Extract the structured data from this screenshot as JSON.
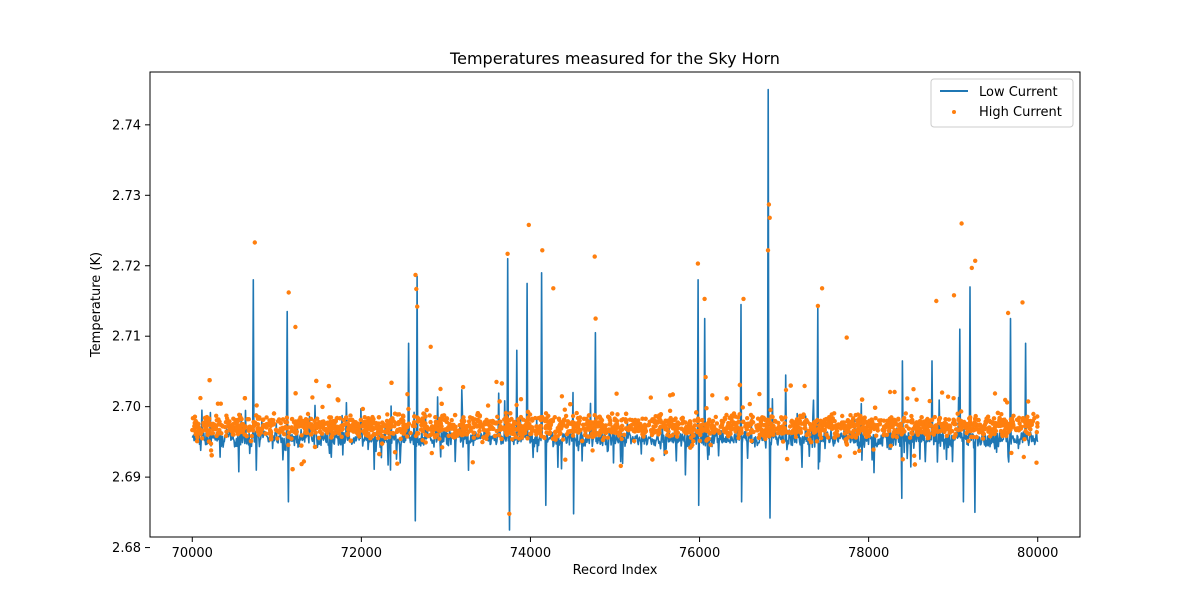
{
  "chart_data": {
    "type": "line",
    "title": "Temperatures measured for the Sky Horn",
    "xlabel": "Record Index",
    "ylabel": "Temperature (K)",
    "xlim": [
      69500,
      80500
    ],
    "ylim": [
      2.6815,
      2.7475
    ],
    "x_ticks": [
      70000,
      72000,
      74000,
      76000,
      78000,
      80000
    ],
    "y_ticks": [
      2.68,
      2.69,
      2.7,
      2.71,
      2.72,
      2.73,
      2.74
    ],
    "legend_position": "top-right",
    "series": [
      {
        "name": "Low Current",
        "kind": "line",
        "color": "#1f77b4",
        "x_range": [
          70000,
          80000
        ],
        "baseline": 2.6955,
        "noise_amplitude": 0.0018,
        "spikes": [
          {
            "x": 70720,
            "y": 2.718
          },
          {
            "x": 70760,
            "y": 2.691
          },
          {
            "x": 71120,
            "y": 2.7135
          },
          {
            "x": 71140,
            "y": 2.6865
          },
          {
            "x": 72560,
            "y": 2.709
          },
          {
            "x": 72640,
            "y": 2.6838
          },
          {
            "x": 72660,
            "y": 2.7185
          },
          {
            "x": 73730,
            "y": 2.721
          },
          {
            "x": 73750,
            "y": 2.6825
          },
          {
            "x": 73840,
            "y": 2.708
          },
          {
            "x": 73960,
            "y": 2.7175
          },
          {
            "x": 74130,
            "y": 2.719
          },
          {
            "x": 74180,
            "y": 2.686
          },
          {
            "x": 74500,
            "y": 2.702
          },
          {
            "x": 74510,
            "y": 2.6848
          },
          {
            "x": 74770,
            "y": 2.7105
          },
          {
            "x": 75980,
            "y": 2.718
          },
          {
            "x": 75990,
            "y": 2.686
          },
          {
            "x": 76060,
            "y": 2.7125
          },
          {
            "x": 76490,
            "y": 2.7145
          },
          {
            "x": 76500,
            "y": 2.6865
          },
          {
            "x": 76810,
            "y": 2.745
          },
          {
            "x": 76830,
            "y": 2.6842
          },
          {
            "x": 77020,
            "y": 2.7045
          },
          {
            "x": 77400,
            "y": 2.714
          },
          {
            "x": 78400,
            "y": 2.7065
          },
          {
            "x": 78390,
            "y": 2.687
          },
          {
            "x": 78750,
            "y": 2.7065
          },
          {
            "x": 79080,
            "y": 2.711
          },
          {
            "x": 79120,
            "y": 2.6865
          },
          {
            "x": 79200,
            "y": 2.717
          },
          {
            "x": 79260,
            "y": 2.685
          },
          {
            "x": 79680,
            "y": 2.7125
          },
          {
            "x": 79860,
            "y": 2.709
          }
        ]
      },
      {
        "name": "High Current",
        "kind": "scatter",
        "color": "#ff7f0e",
        "x_range": [
          70000,
          80000
        ],
        "baseline": 2.6972,
        "noise_amplitude": 0.0024,
        "outliers": [
          {
            "x": 70740,
            "y": 2.7233
          },
          {
            "x": 71140,
            "y": 2.7162
          },
          {
            "x": 71220,
            "y": 2.7113
          },
          {
            "x": 72640,
            "y": 2.7187
          },
          {
            "x": 72650,
            "y": 2.7167
          },
          {
            "x": 72660,
            "y": 2.7142
          },
          {
            "x": 72820,
            "y": 2.7085
          },
          {
            "x": 73730,
            "y": 2.7217
          },
          {
            "x": 73750,
            "y": 2.6848
          },
          {
            "x": 73980,
            "y": 2.7258
          },
          {
            "x": 74140,
            "y": 2.7222
          },
          {
            "x": 74270,
            "y": 2.7168
          },
          {
            "x": 74760,
            "y": 2.7213
          },
          {
            "x": 74770,
            "y": 2.7125
          },
          {
            "x": 75980,
            "y": 2.7203
          },
          {
            "x": 76060,
            "y": 2.7153
          },
          {
            "x": 76520,
            "y": 2.7153
          },
          {
            "x": 76820,
            "y": 2.7287
          },
          {
            "x": 76810,
            "y": 2.7222
          },
          {
            "x": 76830,
            "y": 2.7268
          },
          {
            "x": 77450,
            "y": 2.7168
          },
          {
            "x": 77400,
            "y": 2.7143
          },
          {
            "x": 79100,
            "y": 2.726
          },
          {
            "x": 79220,
            "y": 2.7197
          },
          {
            "x": 79260,
            "y": 2.7207
          },
          {
            "x": 79010,
            "y": 2.7158
          },
          {
            "x": 79820,
            "y": 2.7148
          },
          {
            "x": 78800,
            "y": 2.715
          },
          {
            "x": 79650,
            "y": 2.7133
          },
          {
            "x": 77740,
            "y": 2.7098
          }
        ]
      }
    ]
  }
}
